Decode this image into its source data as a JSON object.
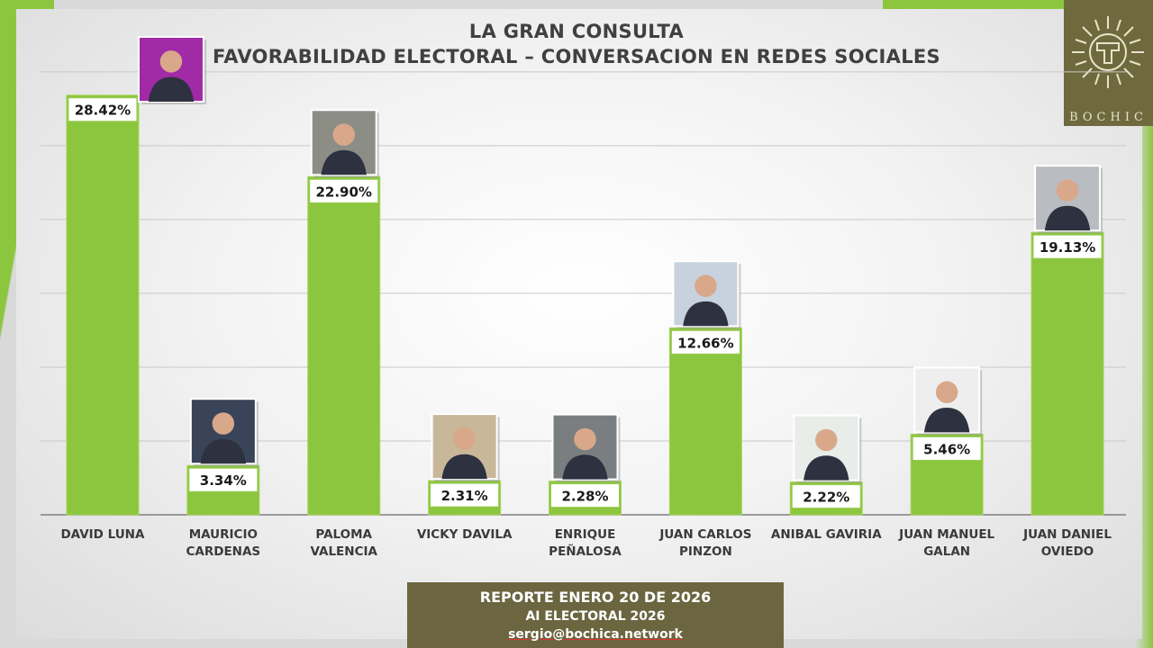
{
  "colors": {
    "bar": "#8cc63f",
    "bar_edge": "#a6d45c",
    "label_bg": "#ffffff",
    "label_text": "#1a1a1a",
    "title": "#404040",
    "gridline": "#c8c8c8",
    "footer_bg": "#6b6640"
  },
  "header": {
    "line1": "LA GRAN CONSULTA",
    "line2": "FAVORABILIDAD ELECTORAL – CONVERSACION EN  REDES SOCIALES"
  },
  "logo": {
    "text": "BOCHIC"
  },
  "footer": {
    "line1": "REPORTE ENERO 20 DE 2026",
    "line2": "AI ELECTORAL 2026",
    "line3": "sergio@bochica.network"
  },
  "chart_data": {
    "type": "bar",
    "title": "LA GRAN CONSULTA — FAVORABILIDAD ELECTORAL – CONVERSACION EN  REDES SOCIALES",
    "xlabel": "",
    "ylabel": "",
    "ylim": [
      0,
      32
    ],
    "grid": true,
    "categories": [
      [
        "DAVID LUNA"
      ],
      [
        "MAURICIO",
        "CARDENAS"
      ],
      [
        "PALOMA",
        "VALENCIA"
      ],
      [
        "VICKY DAVILA"
      ],
      [
        "ENRIQUE",
        "PEÑALOSA"
      ],
      [
        "JUAN CARLOS",
        "PINZON"
      ],
      [
        "ANIBAL GAVIRIA"
      ],
      [
        "JUAN MANUEL",
        "GALAN"
      ],
      [
        "JUAN DANIEL",
        "OVIEDO"
      ]
    ],
    "values": [
      28.42,
      3.34,
      22.9,
      2.31,
      2.28,
      12.66,
      2.22,
      5.46,
      19.13
    ],
    "data_labels": [
      "28.42%",
      "3.34%",
      "22.90%",
      "2.31%",
      "2.28%",
      "12.66%",
      "2.22%",
      "5.46%",
      "19.13%"
    ],
    "photo_side": [
      "right",
      "top",
      "top",
      "top",
      "top",
      "top",
      "top",
      "top",
      "top"
    ],
    "photo_bg": [
      "#a12aa6",
      "#3a4458",
      "#8c8e86",
      "#c9b79a",
      "#7a7e80",
      "#c7d2de",
      "#e9ede9",
      "#eeeeee",
      "#b9bcc0"
    ]
  }
}
